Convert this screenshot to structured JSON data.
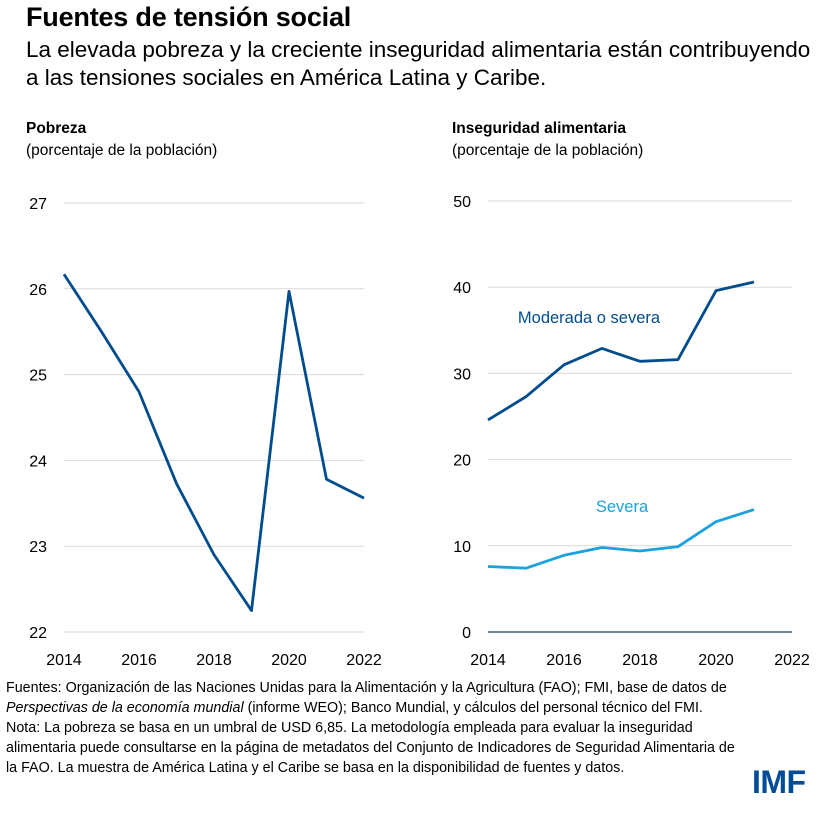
{
  "header": {
    "title": "Fuentes de tensión social",
    "subtitle": "La elevada pobreza y la creciente inseguridad alimentaria están contribuyendo a las tensiones sociales en América Latina y Caribe."
  },
  "colors": {
    "dark_blue": "#004c8c",
    "light_blue": "#1ba1dd",
    "grid": "#d9d9d9",
    "axis": "#1f3864"
  },
  "chart_data": [
    {
      "type": "line",
      "title": "Pobreza",
      "unit": "(porcentaje de la población)",
      "x": [
        2014,
        2015,
        2016,
        2017,
        2018,
        2019,
        2020,
        2021,
        2022
      ],
      "series": [
        {
          "values": [
            26.17,
            25.5,
            24.8,
            23.73,
            22.9,
            22.25,
            25.97,
            23.78,
            23.56
          ]
        }
      ],
      "xlim": [
        2014,
        2022
      ],
      "ylim": [
        22,
        27
      ],
      "xticks": [
        "2014",
        "2016",
        "2018",
        "2020",
        "2022"
      ],
      "yticks": [
        "22",
        "23",
        "24",
        "25",
        "26",
        "27"
      ],
      "grid": true
    },
    {
      "type": "line",
      "title": "Inseguridad alimentaria",
      "unit": "(porcentaje de la población)",
      "x": [
        2014,
        2015,
        2016,
        2017,
        2018,
        2019,
        2020,
        2021
      ],
      "series": [
        {
          "name": "Moderada o severa",
          "values": [
            24.6,
            27.3,
            31.0,
            32.9,
            31.4,
            31.6,
            39.6,
            40.6
          ]
        },
        {
          "name": "Severa",
          "values": [
            7.6,
            7.4,
            8.9,
            9.8,
            9.4,
            9.9,
            12.8,
            14.2
          ]
        }
      ],
      "xlim": [
        2014,
        2022
      ],
      "ylim": [
        0,
        50
      ],
      "xticks": [
        "2014",
        "2016",
        "2018",
        "2020",
        "2022"
      ],
      "yticks": [
        "0",
        "10",
        "20",
        "30",
        "40",
        "50"
      ],
      "grid": true
    }
  ],
  "footer": {
    "sources_1": "Fuentes: Organización de las Naciones Unidas para la Alimentación y la Agricultura (FAO); FMI, base de datos de ",
    "sources_italic": "Perspectivas de la economía mundial",
    "sources_2": " (informe WEO); Banco Mundial, y cálculos del personal técnico del FMI.",
    "note": "Nota: La pobreza se basa en un umbral de USD 6,85. La metodología empleada para evaluar la inseguridad alimentaria puede consultarse en la página de metadatos del Conjunto de Indicadores de Seguridad Alimentaria de la FAO. La muestra de América Latina y el Caribe se basa en la disponibilidad de fuentes y datos.",
    "logo": "IMF"
  }
}
